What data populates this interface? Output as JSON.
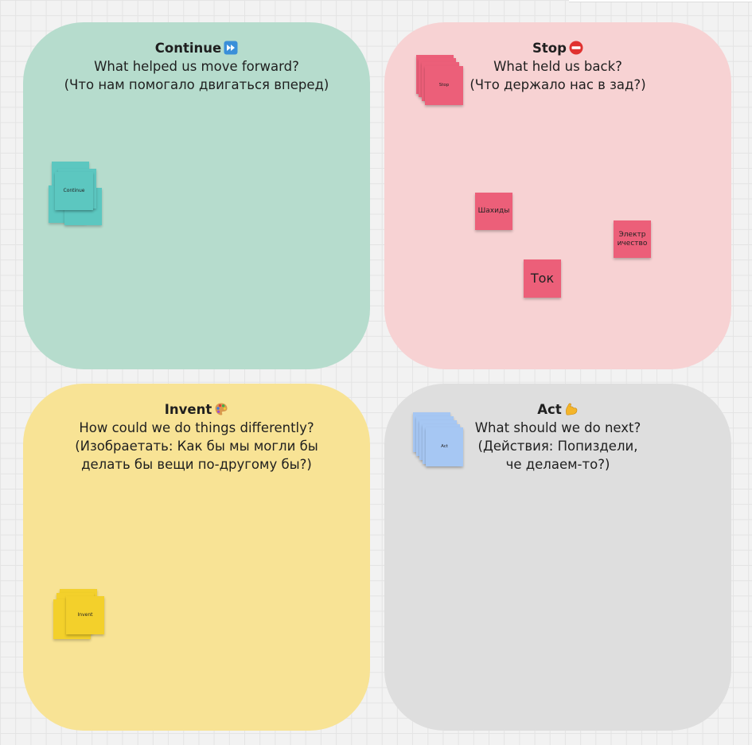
{
  "colors": {
    "continue": "#b6dccd",
    "stop": "#f7d2d3",
    "invent": "#f8e395",
    "act": "#dedede",
    "teal_note": "#5cc7c0",
    "red_note": "#ec5f79",
    "yellow_note": "#f3d02b",
    "blue_note": "#a6c7f3"
  },
  "quadrants": {
    "continue": {
      "title": "Continue",
      "title_icon": "fast-forward-icon",
      "line1": "What helped us move forward?",
      "line2": "(Что нам помогало двигаться вперед)"
    },
    "stop": {
      "title": "Stop",
      "title_icon": "no-entry-icon",
      "line1": "What held us back?",
      "line2": "(Что держало нас в зад?)"
    },
    "invent": {
      "title": "Invent",
      "title_icon": "artist-palette-icon",
      "line1": "How could we do things differently?",
      "line2": "(Изобраетать: Как бы мы могли бы",
      "line3": "делать бы вещи по-другому бы?)"
    },
    "act": {
      "title": "Act",
      "title_icon": "flexed-biceps-icon",
      "line1": "What should we do next?",
      "line2": "(Действия: Попиздели,",
      "line3": "че делаем-то?)"
    }
  },
  "notes": {
    "continue_stack": "Continue",
    "stop_stack": "Stop",
    "invent_stack": "Invent",
    "act_stack": "Act",
    "shahidy": "Шахиды",
    "electricity": "Электр ичество",
    "tok": "Ток"
  }
}
